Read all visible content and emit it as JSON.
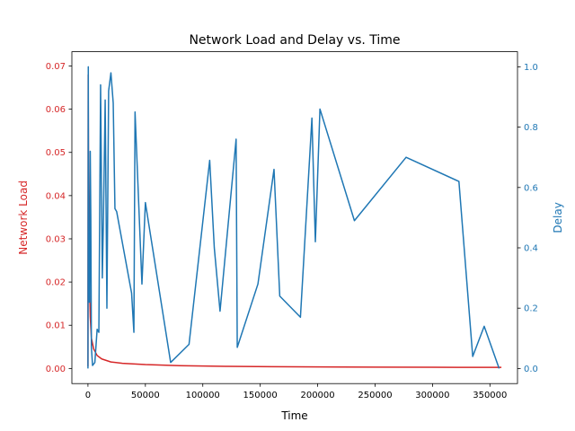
{
  "chart_data": {
    "type": "line",
    "title": "Network Load and Delay vs. Time",
    "xlabel": "Time",
    "xlim": [
      -14000,
      374000
    ],
    "x_ticks": [
      0,
      50000,
      100000,
      150000,
      200000,
      250000,
      300000,
      350000
    ],
    "x_tick_labels": [
      "0",
      "50000",
      "100000",
      "150000",
      "200000",
      "250000",
      "300000",
      "350000"
    ],
    "grid": false,
    "y_left": {
      "label": "Network Load",
      "color": "#d62728",
      "lim": [
        -0.0035,
        0.0733
      ],
      "ticks": [
        0.0,
        0.01,
        0.02,
        0.03,
        0.04,
        0.05,
        0.06,
        0.07
      ],
      "tick_labels": [
        "0.00",
        "0.01",
        "0.02",
        "0.03",
        "0.04",
        "0.05",
        "0.06",
        "0.07"
      ]
    },
    "y_right": {
      "label": "Delay",
      "color": "#1f77b4",
      "lim": [
        -0.05,
        1.05
      ],
      "ticks": [
        0.0,
        0.2,
        0.4,
        0.6,
        0.8,
        1.0
      ],
      "tick_labels": [
        "0.0",
        "0.2",
        "0.4",
        "0.6",
        "0.8",
        "1.0"
      ]
    },
    "series": [
      {
        "axis": "left",
        "color": "#d62728",
        "x": [
          0,
          200,
          500,
          1000,
          2000,
          3000,
          5000,
          8000,
          12000,
          20000,
          30000,
          50000,
          80000,
          120000,
          160000,
          200000,
          250000,
          300000,
          360000
        ],
        "y": [
          0.0005,
          0.068,
          0.045,
          0.025,
          0.012,
          0.007,
          0.0045,
          0.003,
          0.0022,
          0.0015,
          0.0012,
          0.0009,
          0.00065,
          0.0005,
          0.0004,
          0.00035,
          0.0003,
          0.00027,
          0.00025
        ]
      },
      {
        "axis": "right",
        "color": "#1f77b4",
        "x": [
          0,
          300,
          600,
          1000,
          1500,
          2000,
          2500,
          3000,
          4000,
          6000,
          8000,
          9500,
          11000,
          12500,
          13500,
          15000,
          16500,
          18000,
          20000,
          22000,
          23500,
          25000,
          38000,
          40000,
          41000,
          47000,
          50000,
          72000,
          88000,
          106000,
          110000,
          115000,
          129000,
          130000,
          148000,
          162000,
          167000,
          185000,
          195000,
          198000,
          202000,
          232000,
          277000,
          323000,
          335000,
          345000,
          358000
        ],
        "y": [
          0.0,
          1.0,
          0.3,
          0.22,
          0.22,
          0.72,
          0.5,
          0.07,
          0.01,
          0.02,
          0.13,
          0.12,
          0.94,
          0.3,
          0.5,
          0.89,
          0.2,
          0.92,
          0.98,
          0.88,
          0.53,
          0.52,
          0.25,
          0.12,
          0.85,
          0.28,
          0.55,
          0.02,
          0.08,
          0.69,
          0.4,
          0.19,
          0.76,
          0.07,
          0.28,
          0.66,
          0.24,
          0.17,
          0.83,
          0.42,
          0.86,
          0.49,
          0.7,
          0.62,
          0.04,
          0.14,
          0.0
        ]
      }
    ]
  }
}
